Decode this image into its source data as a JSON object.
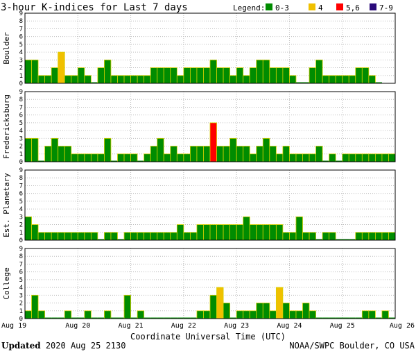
{
  "chart_data": {
    "type": "bar",
    "title": "3-hour K-indices for Last 7 days",
    "legend": {
      "label": "Legend:",
      "placement": "top-right",
      "items": [
        {
          "label": "0-3",
          "color": "#008c00"
        },
        {
          "label": "4",
          "color": "#f0c000"
        },
        {
          "label": "5,6",
          "color": "#ff0000"
        },
        {
          "label": "7-9",
          "color": "#2a0a7a"
        }
      ]
    },
    "xlabel": "Coordinate Universal Time (UTC)",
    "x_ticks": [
      "Aug 19",
      "Aug 20",
      "Aug 21",
      "Aug 22",
      "Aug 23",
      "Aug 24",
      "Aug 25",
      "Aug 26"
    ],
    "ylim": [
      0,
      9
    ],
    "y_ticks": [
      "0",
      "1",
      "2",
      "3",
      "4",
      "5",
      "6",
      "7",
      "8",
      "9"
    ],
    "grid": true,
    "panels": [
      {
        "name": "Boulder",
        "values": [
          3,
          3,
          1,
          1,
          2,
          4,
          1,
          1,
          2,
          1,
          0,
          2,
          3,
          1,
          1,
          1,
          1,
          1,
          1,
          2,
          2,
          2,
          2,
          1,
          2,
          2,
          2,
          2,
          3,
          2,
          2,
          1,
          2,
          1,
          2,
          3,
          3,
          2,
          2,
          2,
          1,
          0,
          0,
          2,
          3,
          1,
          1,
          1,
          1,
          1,
          2,
          2,
          1,
          0
        ]
      },
      {
        "name": "Fredericksburg",
        "values": [
          3,
          3,
          0,
          2,
          3,
          2,
          2,
          1,
          1,
          1,
          1,
          1,
          3,
          0,
          1,
          1,
          1,
          0,
          1,
          2,
          3,
          1,
          2,
          1,
          1,
          2,
          2,
          2,
          5,
          2,
          2,
          3,
          2,
          2,
          1,
          2,
          3,
          2,
          1,
          2,
          1,
          1,
          1,
          1,
          2,
          0,
          1,
          0,
          1,
          1,
          1,
          1,
          1,
          1,
          1,
          1,
          0
        ]
      },
      {
        "name": "Est. Planetary",
        "values": [
          3,
          2,
          1,
          1,
          1,
          1,
          1,
          1,
          1,
          1,
          1,
          0,
          1,
          1,
          0,
          1,
          1,
          1,
          1,
          1,
          1,
          1,
          1,
          2,
          1,
          1,
          2,
          2,
          2,
          2,
          2,
          2,
          2,
          3,
          2,
          2,
          2,
          2,
          2,
          1,
          1,
          3,
          1,
          1,
          0,
          1,
          1,
          0,
          0,
          0,
          1,
          1,
          1,
          1,
          1,
          1,
          1,
          1
        ]
      },
      {
        "name": "College",
        "values": [
          1,
          3,
          1,
          0,
          0,
          0,
          1,
          0,
          0,
          1,
          0,
          0,
          1,
          0,
          0,
          3,
          0,
          1,
          0,
          0,
          0,
          0,
          0,
          0,
          0,
          0,
          1,
          1,
          3,
          4,
          2,
          0,
          1,
          1,
          1,
          2,
          2,
          1,
          4,
          2,
          1,
          1,
          2,
          1,
          0,
          0,
          0,
          0,
          0,
          0,
          0,
          1,
          1,
          0,
          1,
          0,
          0,
          1,
          0
        ]
      }
    ]
  },
  "footer": {
    "updated_label": "Updated",
    "updated_value": " 2020 Aug 25 2130",
    "credit": "NOAA/SWPC Boulder, CO USA"
  }
}
